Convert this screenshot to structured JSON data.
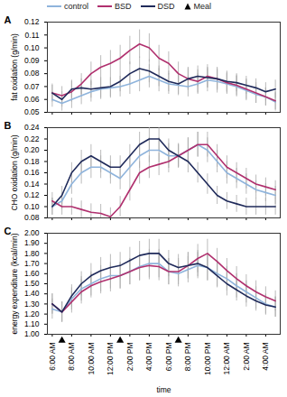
{
  "chart_data": [
    {
      "type": "line",
      "title": "A",
      "y_label": "fat oxidation (g/min)",
      "legend": "top",
      "tick_labels": "y",
      "x": [
        6,
        7,
        8,
        9,
        10,
        11,
        12,
        13,
        14,
        15,
        16,
        17,
        18,
        19,
        20,
        21,
        22,
        23,
        24,
        25,
        26,
        27,
        28,
        29
      ],
      "xlim": [
        5.5,
        29.5
      ],
      "xticks": [
        {
          "value": 6,
          "label": "6:00 AM"
        },
        {
          "value": 8,
          "label": "8:00 AM"
        },
        {
          "value": 10,
          "label": "10:00 AM"
        },
        {
          "value": 12,
          "label": "12:00 PM"
        },
        {
          "value": 14,
          "label": "2:00 PM"
        },
        {
          "value": 16,
          "label": "4:00 PM"
        },
        {
          "value": 18,
          "label": "6:00 PM"
        },
        {
          "value": 20,
          "label": "8:00 PM"
        },
        {
          "value": 22,
          "label": "10:00 PM"
        },
        {
          "value": 24,
          "label": "12:00 AM"
        },
        {
          "value": 26,
          "label": "2:00 AM"
        },
        {
          "value": 28,
          "label": "4:00 AM"
        }
      ],
      "ylim": [
        0.05,
        0.12
      ],
      "yticks": [
        0.05,
        0.06,
        0.07,
        0.08,
        0.09,
        {
          "value": 0.1,
          "label": "0.10"
        },
        0.11,
        0.12
      ],
      "series": [
        {
          "name": "control",
          "color": "#8fb4dc",
          "values": [
            0.06,
            0.057,
            0.06,
            0.063,
            0.066,
            0.068,
            0.069,
            0.07,
            0.072,
            0.075,
            0.078,
            0.075,
            0.072,
            0.071,
            0.07,
            0.072,
            0.075,
            0.074,
            0.072,
            0.07,
            0.067,
            0.064,
            0.062,
            0.058
          ],
          "error": [
            0.006,
            0.006,
            0.007,
            0.007,
            0.008,
            0.008,
            0.008,
            0.008,
            0.008,
            0.009,
            0.009,
            0.009,
            0.008,
            0.008,
            0.008,
            0.008,
            0.009,
            0.009,
            0.008,
            0.008,
            0.008,
            0.007,
            0.007,
            0.007
          ]
        },
        {
          "name": "BSD",
          "color": "#b0306e",
          "values": [
            0.065,
            0.063,
            0.066,
            0.072,
            0.08,
            0.085,
            0.088,
            0.092,
            0.098,
            0.103,
            0.1,
            0.092,
            0.088,
            0.08,
            0.076,
            0.074,
            0.078,
            0.076,
            0.073,
            0.071,
            0.068,
            0.065,
            0.062,
            0.059
          ],
          "error": [
            0.007,
            0.007,
            0.008,
            0.008,
            0.009,
            0.009,
            0.01,
            0.01,
            0.011,
            0.011,
            0.011,
            0.01,
            0.009,
            0.009,
            0.009,
            0.009,
            0.009,
            0.009,
            0.008,
            0.008,
            0.008,
            0.008,
            0.007,
            0.007
          ]
        },
        {
          "name": "DSD",
          "color": "#1f2a5a",
          "values": [
            0.065,
            0.06,
            0.068,
            0.069,
            0.068,
            0.069,
            0.07,
            0.074,
            0.08,
            0.084,
            0.082,
            0.078,
            0.074,
            0.072,
            0.076,
            0.078,
            0.077,
            0.076,
            0.074,
            0.073,
            0.071,
            0.069,
            0.066,
            0.068
          ],
          "error": [
            0.006,
            0.006,
            0.007,
            0.007,
            0.007,
            0.008,
            0.008,
            0.008,
            0.009,
            0.009,
            0.009,
            0.008,
            0.008,
            0.008,
            0.008,
            0.008,
            0.008,
            0.008,
            0.008,
            0.007,
            0.007,
            0.007,
            0.007,
            0.007
          ]
        }
      ]
    },
    {
      "type": "line",
      "title": "B",
      "y_label": "CHO oxidation (g/min)",
      "tick_labels": "y",
      "x": [
        6,
        7,
        8,
        9,
        10,
        11,
        12,
        13,
        14,
        15,
        16,
        17,
        18,
        19,
        20,
        21,
        22,
        23,
        24,
        25,
        26,
        27,
        28,
        29
      ],
      "xlim": [
        5.5,
        29.5
      ],
      "xticks": [
        {
          "value": 6,
          "label": "6:00 AM"
        },
        {
          "value": 8,
          "label": "8:00 AM"
        },
        {
          "value": 10,
          "label": "10:00 AM"
        },
        {
          "value": 12,
          "label": "12:00 PM"
        },
        {
          "value": 14,
          "label": "2:00 PM"
        },
        {
          "value": 16,
          "label": "4:00 PM"
        },
        {
          "value": 18,
          "label": "6:00 PM"
        },
        {
          "value": 20,
          "label": "8:00 PM"
        },
        {
          "value": 22,
          "label": "10:00 PM"
        },
        {
          "value": 24,
          "label": "12:00 AM"
        },
        {
          "value": 26,
          "label": "2:00 AM"
        },
        {
          "value": 28,
          "label": "4:00 AM"
        }
      ],
      "ylim": [
        0.08,
        0.24
      ],
      "yticks": [
        0.08,
        {
          "value": 0.1,
          "label": "0.10"
        },
        0.12,
        0.14,
        0.16,
        0.18,
        {
          "value": 0.2,
          "label": "0.20"
        },
        0.22,
        0.24
      ],
      "series": [
        {
          "name": "control",
          "color": "#8fb4dc",
          "values": [
            0.1,
            0.11,
            0.14,
            0.16,
            0.17,
            0.17,
            0.16,
            0.15,
            0.17,
            0.19,
            0.2,
            0.2,
            0.19,
            0.19,
            0.2,
            0.21,
            0.2,
            0.18,
            0.16,
            0.15,
            0.14,
            0.13,
            0.125,
            0.12
          ],
          "error": [
            0.015,
            0.015,
            0.018,
            0.02,
            0.02,
            0.02,
            0.02,
            0.02,
            0.02,
            0.022,
            0.022,
            0.022,
            0.022,
            0.022,
            0.022,
            0.022,
            0.022,
            0.02,
            0.02,
            0.018,
            0.018,
            0.016,
            0.016,
            0.016
          ]
        },
        {
          "name": "BSD",
          "color": "#b0306e",
          "values": [
            0.11,
            0.1,
            0.1,
            0.095,
            0.09,
            0.088,
            0.082,
            0.1,
            0.13,
            0.16,
            0.17,
            0.175,
            0.18,
            0.19,
            0.2,
            0.21,
            0.21,
            0.19,
            0.17,
            0.16,
            0.15,
            0.14,
            0.135,
            0.13
          ],
          "error": [
            0.015,
            0.015,
            0.015,
            0.015,
            0.015,
            0.016,
            0.016,
            0.018,
            0.02,
            0.02,
            0.02,
            0.02,
            0.02,
            0.02,
            0.022,
            0.022,
            0.022,
            0.02,
            0.02,
            0.018,
            0.018,
            0.016,
            0.016,
            0.016
          ]
        },
        {
          "name": "DSD",
          "color": "#1f2a5a",
          "values": [
            0.1,
            0.12,
            0.16,
            0.18,
            0.19,
            0.18,
            0.17,
            0.17,
            0.19,
            0.21,
            0.22,
            0.22,
            0.2,
            0.19,
            0.18,
            0.16,
            0.14,
            0.12,
            0.11,
            0.105,
            0.1,
            0.1,
            0.1,
            0.1
          ],
          "error": [
            0.015,
            0.016,
            0.018,
            0.02,
            0.02,
            0.02,
            0.02,
            0.02,
            0.02,
            0.022,
            0.022,
            0.022,
            0.02,
            0.02,
            0.02,
            0.018,
            0.018,
            0.016,
            0.015,
            0.015,
            0.015,
            0.015,
            0.015,
            0.015
          ]
        }
      ]
    },
    {
      "type": "line",
      "title": "C",
      "y_label": "energy expenditure (kcal/min)",
      "x_label": "time",
      "x": [
        6,
        7,
        8,
        9,
        10,
        11,
        12,
        13,
        14,
        15,
        16,
        17,
        18,
        19,
        20,
        21,
        22,
        23,
        24,
        25,
        26,
        27,
        28,
        29
      ],
      "xlim": [
        5.5,
        29.5
      ],
      "xticks": [
        {
          "value": 6,
          "label": "6:00 AM"
        },
        {
          "value": 8,
          "label": "8:00 AM"
        },
        {
          "value": 10,
          "label": "10:00 AM"
        },
        {
          "value": 12,
          "label": "12:00 PM"
        },
        {
          "value": 14,
          "label": "2:00 PM"
        },
        {
          "value": 16,
          "label": "4:00 PM"
        },
        {
          "value": 18,
          "label": "6:00 PM"
        },
        {
          "value": 20,
          "label": "8:00 PM"
        },
        {
          "value": 22,
          "label": "10:00 PM"
        },
        {
          "value": 24,
          "label": "12:00 AM"
        },
        {
          "value": 26,
          "label": "2:00 AM"
        },
        {
          "value": 28,
          "label": "4:00 AM"
        }
      ],
      "ylim": [
        1.0,
        2.0
      ],
      "yticks": [
        {
          "value": 1.0,
          "label": "1.00"
        },
        {
          "value": 1.1,
          "label": "1.10"
        },
        {
          "value": 1.2,
          "label": "1.20"
        },
        {
          "value": 1.3,
          "label": "1.30"
        },
        {
          "value": 1.4,
          "label": "1.40"
        },
        {
          "value": 1.5,
          "label": "1.50"
        },
        {
          "value": 1.6,
          "label": "1.60"
        },
        {
          "value": 1.7,
          "label": "1.70"
        },
        {
          "value": 1.8,
          "label": "1.80"
        },
        {
          "value": 1.9,
          "label": "1.90"
        },
        {
          "value": 2.0,
          "label": "2.00"
        }
      ],
      "meals": {
        "name": "Meal",
        "x": [
          7,
          13,
          19
        ]
      },
      "series": [
        {
          "name": "control",
          "color": "#8fb4dc",
          "values": [
            1.25,
            1.22,
            1.35,
            1.45,
            1.5,
            1.55,
            1.58,
            1.58,
            1.62,
            1.67,
            1.7,
            1.7,
            1.62,
            1.6,
            1.64,
            1.68,
            1.66,
            1.6,
            1.55,
            1.48,
            1.42,
            1.36,
            1.3,
            1.27
          ],
          "error": [
            0.1,
            0.1,
            0.11,
            0.12,
            0.12,
            0.13,
            0.13,
            0.13,
            0.13,
            0.14,
            0.14,
            0.14,
            0.13,
            0.13,
            0.13,
            0.13,
            0.13,
            0.13,
            0.12,
            0.12,
            0.11,
            0.11,
            0.1,
            0.1
          ]
        },
        {
          "name": "BSD",
          "color": "#b0306e",
          "values": [
            1.3,
            1.22,
            1.32,
            1.42,
            1.48,
            1.52,
            1.55,
            1.58,
            1.62,
            1.66,
            1.68,
            1.67,
            1.62,
            1.62,
            1.68,
            1.75,
            1.8,
            1.72,
            1.63,
            1.55,
            1.48,
            1.42,
            1.37,
            1.33
          ],
          "error": [
            0.1,
            0.1,
            0.11,
            0.12,
            0.12,
            0.12,
            0.13,
            0.13,
            0.13,
            0.13,
            0.14,
            0.14,
            0.13,
            0.13,
            0.13,
            0.14,
            0.14,
            0.13,
            0.12,
            0.12,
            0.11,
            0.11,
            0.1,
            0.1
          ]
        },
        {
          "name": "DSD",
          "color": "#1f2a5a",
          "values": [
            1.3,
            1.22,
            1.38,
            1.5,
            1.58,
            1.63,
            1.66,
            1.68,
            1.73,
            1.78,
            1.8,
            1.8,
            1.7,
            1.66,
            1.68,
            1.7,
            1.66,
            1.58,
            1.5,
            1.44,
            1.38,
            1.33,
            1.29,
            1.27
          ],
          "error": [
            0.1,
            0.1,
            0.11,
            0.12,
            0.12,
            0.13,
            0.13,
            0.13,
            0.13,
            0.14,
            0.14,
            0.14,
            0.13,
            0.13,
            0.13,
            0.13,
            0.13,
            0.12,
            0.12,
            0.11,
            0.11,
            0.1,
            0.1,
            0.1
          ]
        }
      ]
    }
  ]
}
